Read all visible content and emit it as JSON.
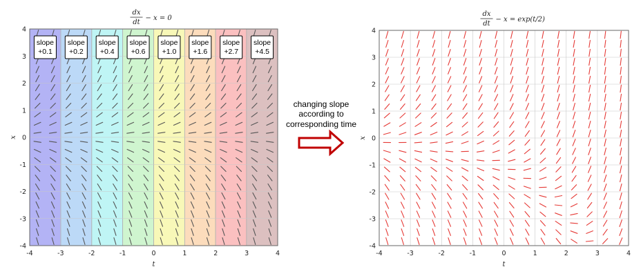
{
  "chart_data": [
    {
      "type": "slope_field",
      "title": {
        "num": "dx",
        "den": "dt",
        "rest": "− x = 0"
      },
      "xlabel": "t",
      "ylabel": "x",
      "xlim": [
        -4,
        4
      ],
      "ylim": [
        -4,
        4
      ],
      "xticks": [
        "-4",
        "-3",
        "-2",
        "-1",
        "0",
        "1",
        "2",
        "3",
        "4"
      ],
      "yticks": [
        "-4",
        "-3",
        "-2",
        "-1",
        "0",
        "1",
        "2",
        "3",
        "4"
      ],
      "grid": true,
      "field_color": "#555555",
      "bands": [
        {
          "range": [
            -4,
            -3
          ],
          "color": "#b3b3f5",
          "label": [
            "slope",
            "+0.1"
          ]
        },
        {
          "range": [
            -3,
            -2
          ],
          "color": "#bcd9f7",
          "label": [
            "slope",
            "+0.2"
          ]
        },
        {
          "range": [
            -2,
            -1
          ],
          "color": "#bff5f5",
          "label": [
            "slope",
            "+0.4"
          ]
        },
        {
          "range": [
            -1,
            0
          ],
          "color": "#cff5cf",
          "label": [
            "slope",
            "+0.6"
          ]
        },
        {
          "range": [
            0,
            1
          ],
          "color": "#f8f8b8",
          "label": [
            "slope",
            "+1.0"
          ]
        },
        {
          "range": [
            1,
            2
          ],
          "color": "#fcdcbc",
          "label": [
            "slope",
            "+1.6"
          ]
        },
        {
          "range": [
            2,
            3
          ],
          "color": "#fbc0c0",
          "label": [
            "slope",
            "+2.7"
          ]
        },
        {
          "range": [
            3,
            4
          ],
          "color": "#dcc0c0",
          "label": [
            "slope",
            "+4.5"
          ]
        }
      ]
    },
    {
      "type": "slope_field",
      "title": {
        "num": "dx",
        "den": "dt",
        "rest": "− x = exp(t/2)"
      },
      "xlabel": "t",
      "ylabel": "x",
      "xlim": [
        -4,
        4
      ],
      "ylim": [
        -4,
        4
      ],
      "xticks": [
        "-4",
        "-3",
        "-2",
        "-1",
        "0",
        "1",
        "2",
        "3",
        "4"
      ],
      "yticks": [
        "-4",
        "-3",
        "-2",
        "-1",
        "0",
        "1",
        "2",
        "3",
        "4"
      ],
      "grid": true,
      "field_color": "#e53935"
    }
  ],
  "annotation": {
    "lines": [
      "changing slope",
      "according to",
      "corresponding time"
    ],
    "arrow_color": "#c00000"
  }
}
